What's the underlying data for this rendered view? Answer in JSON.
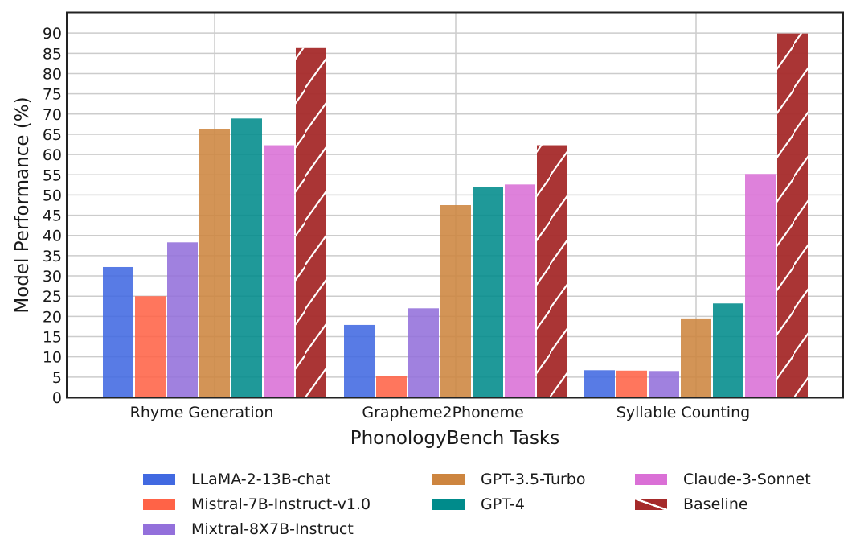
{
  "chart_data": {
    "type": "bar",
    "title": "",
    "xlabel": "PhonologyBench Tasks",
    "ylabel": "Model Performance (%)",
    "ylim": [
      0,
      95
    ],
    "yticks": [
      0,
      5,
      10,
      15,
      20,
      25,
      30,
      35,
      40,
      45,
      50,
      55,
      60,
      65,
      70,
      75,
      80,
      85,
      90
    ],
    "grid": true,
    "legend_position": "bottom",
    "categories": [
      "Rhyme Generation",
      "Grapheme2Phoneme",
      "Syllable Counting"
    ],
    "series": [
      {
        "name": "LLaMA-2-13B-chat",
        "color": "#4169E1",
        "values": [
          32.2,
          17.9,
          6.7
        ]
      },
      {
        "name": "Mistral-7B-Instruct-v1.0",
        "color": "#FF6347",
        "values": [
          25.0,
          5.2,
          6.6
        ]
      },
      {
        "name": "Mixtral-8X7B-Instruct",
        "color": "#9370DB",
        "values": [
          38.3,
          22.0,
          6.5
        ]
      },
      {
        "name": "GPT-3.5-Turbo",
        "color": "#CD853F",
        "values": [
          66.3,
          47.5,
          19.5
        ]
      },
      {
        "name": "GPT-4",
        "color": "#008B8B",
        "values": [
          68.9,
          51.9,
          23.2
        ]
      },
      {
        "name": "Claude-3-Sonnet",
        "color": "#DA70D6",
        "values": [
          62.3,
          52.6,
          55.2
        ]
      },
      {
        "name": "Baseline",
        "color": "#A52A2A",
        "hatch": "/",
        "values": [
          86.3,
          62.3,
          89.9
        ]
      }
    ]
  }
}
